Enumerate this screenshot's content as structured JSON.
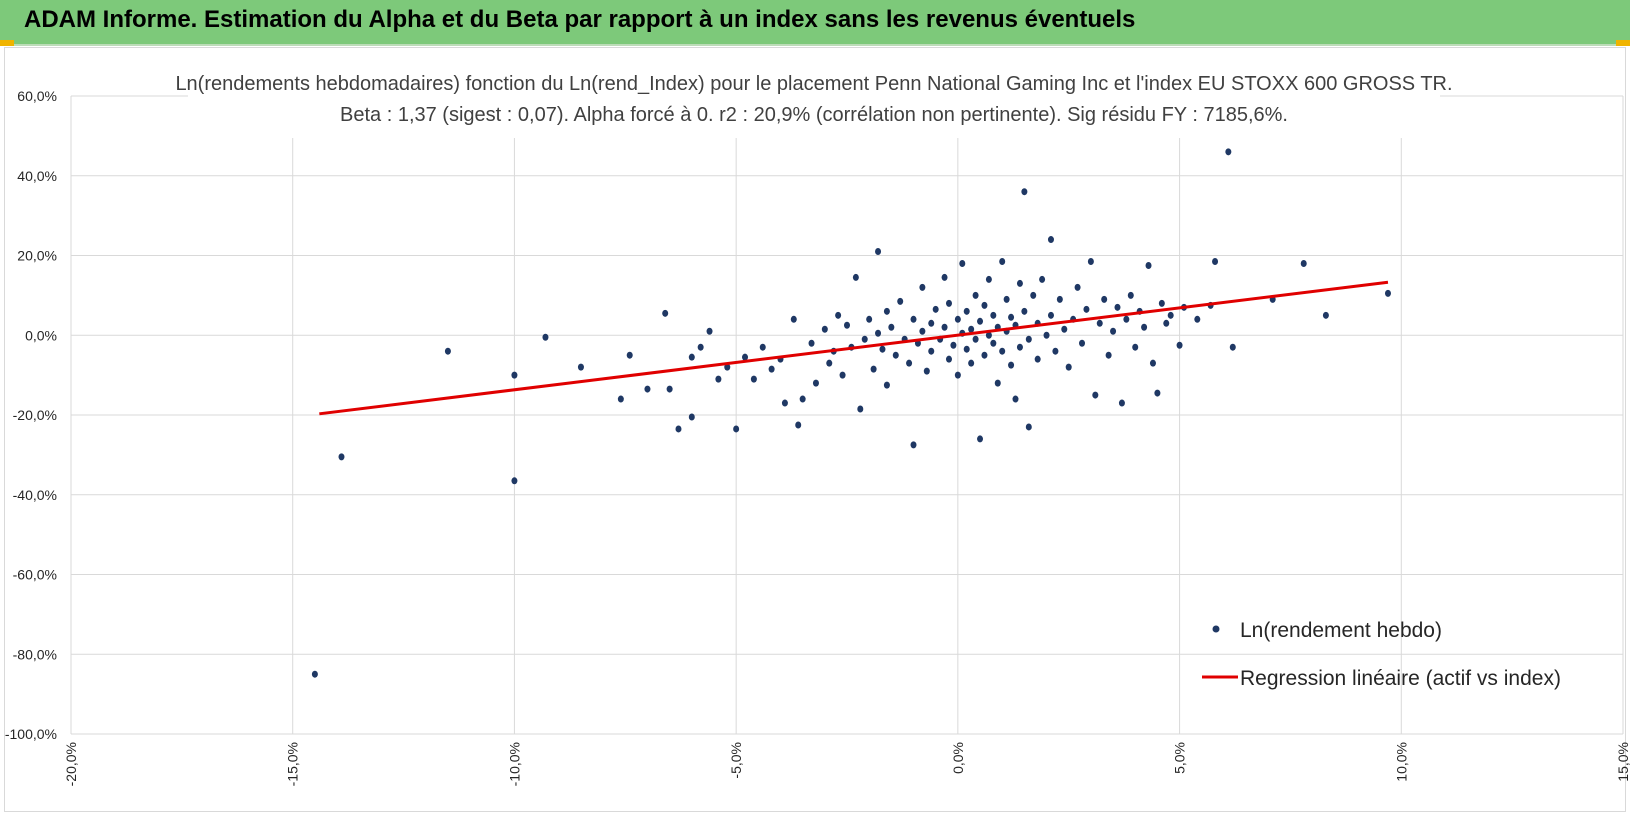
{
  "banner": {
    "title": "ADAM Informe. Estimation du Alpha et du Beta par rapport à un index sans les revenus éventuels",
    "background_color": "#7dc97a",
    "corner_color": "#f0b400"
  },
  "chart_data": {
    "type": "scatter",
    "title": "Ln(rendements hebdomadaires) fonction du Ln(rend_Index) pour le placement Penn National Gaming Inc et l'index EU STOXX 600 GROSS TR.",
    "subtitle": "Beta : 1,37 (sigest : 0,07). Alpha forcé à 0. r2 : 20,9% (corrélation non pertinente). Sig résidu FY : 7185,6%.",
    "xlabel": "",
    "ylabel": "",
    "xlim": [
      -0.2,
      0.15
    ],
    "ylim": [
      -1.0,
      0.6
    ],
    "x_ticks": [
      -0.2,
      -0.15,
      -0.1,
      -0.05,
      0.0,
      0.05,
      0.1,
      0.15
    ],
    "x_tick_labels": [
      "-20,0%",
      "-15,0%",
      "-10,0%",
      "-5,0%",
      "0,0%",
      "5,0%",
      "10,0%",
      "15,0%"
    ],
    "y_ticks": [
      0.6,
      0.4,
      0.2,
      0.0,
      -0.2,
      -0.4,
      -0.6,
      -0.8,
      -1.0
    ],
    "y_tick_labels": [
      "60,0%",
      "40,0%",
      "20,0%",
      "0,0%",
      "-20,0%",
      "-40,0%",
      "-60,0%",
      "-80,0%",
      "-100,0%"
    ],
    "grid": true,
    "legend_position": "bottom-right",
    "series": [
      {
        "name": "Ln(rendement hebdo)",
        "kind": "scatter",
        "color": "#1f3864",
        "points": [
          [
            -0.145,
            -0.85
          ],
          [
            -0.139,
            -0.305
          ],
          [
            -0.115,
            -0.04
          ],
          [
            -0.1,
            -0.365
          ],
          [
            -0.1,
            -0.1
          ],
          [
            -0.093,
            -0.005
          ],
          [
            -0.085,
            -0.08
          ],
          [
            -0.076,
            -0.16
          ],
          [
            -0.074,
            -0.05
          ],
          [
            -0.07,
            -0.135
          ],
          [
            -0.066,
            0.055
          ],
          [
            -0.065,
            -0.135
          ],
          [
            -0.063,
            -0.235
          ],
          [
            -0.06,
            -0.205
          ],
          [
            -0.06,
            -0.055
          ],
          [
            -0.058,
            -0.03
          ],
          [
            -0.056,
            0.01
          ],
          [
            -0.054,
            -0.11
          ],
          [
            -0.052,
            -0.08
          ],
          [
            -0.05,
            -0.235
          ],
          [
            -0.048,
            -0.055
          ],
          [
            -0.046,
            -0.11
          ],
          [
            -0.044,
            -0.03
          ],
          [
            -0.042,
            -0.085
          ],
          [
            -0.04,
            -0.06
          ],
          [
            -0.039,
            -0.17
          ],
          [
            -0.037,
            0.04
          ],
          [
            -0.036,
            -0.225
          ],
          [
            -0.035,
            -0.16
          ],
          [
            -0.033,
            -0.02
          ],
          [
            -0.032,
            -0.12
          ],
          [
            -0.03,
            0.015
          ],
          [
            -0.029,
            -0.07
          ],
          [
            -0.028,
            -0.04
          ],
          [
            -0.027,
            0.05
          ],
          [
            -0.026,
            -0.1
          ],
          [
            -0.025,
            0.025
          ],
          [
            -0.024,
            -0.03
          ],
          [
            -0.023,
            0.145
          ],
          [
            -0.022,
            -0.185
          ],
          [
            -0.021,
            -0.01
          ],
          [
            -0.02,
            0.04
          ],
          [
            -0.019,
            -0.085
          ],
          [
            -0.018,
            0.21
          ],
          [
            -0.018,
            0.005
          ],
          [
            -0.017,
            -0.035
          ],
          [
            -0.016,
            0.06
          ],
          [
            -0.016,
            -0.125
          ],
          [
            -0.015,
            0.02
          ],
          [
            -0.014,
            -0.05
          ],
          [
            -0.013,
            0.085
          ],
          [
            -0.012,
            -0.01
          ],
          [
            -0.011,
            -0.07
          ],
          [
            -0.01,
            0.04
          ],
          [
            -0.01,
            -0.275
          ],
          [
            -0.009,
            -0.02
          ],
          [
            -0.008,
            0.12
          ],
          [
            -0.008,
            0.01
          ],
          [
            -0.007,
            -0.09
          ],
          [
            -0.006,
            0.03
          ],
          [
            -0.006,
            -0.04
          ],
          [
            -0.005,
            0.065
          ],
          [
            -0.004,
            -0.01
          ],
          [
            -0.003,
            0.145
          ],
          [
            -0.003,
            0.02
          ],
          [
            -0.002,
            -0.06
          ],
          [
            -0.002,
            0.08
          ],
          [
            -0.001,
            -0.025
          ],
          [
            0.0,
            0.04
          ],
          [
            0.0,
            -0.1
          ],
          [
            0.001,
            0.005
          ],
          [
            0.001,
            0.18
          ],
          [
            0.002,
            -0.035
          ],
          [
            0.002,
            0.06
          ],
          [
            0.003,
            0.015
          ],
          [
            0.003,
            -0.07
          ],
          [
            0.004,
            0.1
          ],
          [
            0.004,
            -0.01
          ],
          [
            0.005,
            0.035
          ],
          [
            0.005,
            -0.26
          ],
          [
            0.006,
            -0.05
          ],
          [
            0.006,
            0.075
          ],
          [
            0.007,
            0.0
          ],
          [
            0.007,
            0.14
          ],
          [
            0.008,
            -0.02
          ],
          [
            0.008,
            0.05
          ],
          [
            0.009,
            -0.12
          ],
          [
            0.009,
            0.02
          ],
          [
            0.01,
            0.185
          ],
          [
            0.01,
            -0.04
          ],
          [
            0.011,
            0.09
          ],
          [
            0.011,
            0.01
          ],
          [
            0.012,
            -0.075
          ],
          [
            0.012,
            0.045
          ],
          [
            0.013,
            -0.16
          ],
          [
            0.013,
            0.025
          ],
          [
            0.014,
            0.13
          ],
          [
            0.014,
            -0.03
          ],
          [
            0.015,
            0.36
          ],
          [
            0.015,
            0.06
          ],
          [
            0.016,
            -0.23
          ],
          [
            0.016,
            -0.01
          ],
          [
            0.017,
            0.1
          ],
          [
            0.018,
            0.03
          ],
          [
            0.018,
            -0.06
          ],
          [
            0.019,
            0.14
          ],
          [
            0.02,
            0.0
          ],
          [
            0.021,
            0.24
          ],
          [
            0.021,
            0.05
          ],
          [
            0.022,
            -0.04
          ],
          [
            0.023,
            0.09
          ],
          [
            0.024,
            0.015
          ],
          [
            0.025,
            -0.08
          ],
          [
            0.026,
            0.04
          ],
          [
            0.027,
            0.12
          ],
          [
            0.028,
            -0.02
          ],
          [
            0.029,
            0.065
          ],
          [
            0.03,
            0.185
          ],
          [
            0.031,
            -0.15
          ],
          [
            0.032,
            0.03
          ],
          [
            0.033,
            0.09
          ],
          [
            0.034,
            -0.05
          ],
          [
            0.035,
            0.01
          ],
          [
            0.036,
            0.07
          ],
          [
            0.037,
            -0.17
          ],
          [
            0.038,
            0.04
          ],
          [
            0.039,
            0.1
          ],
          [
            0.04,
            -0.03
          ],
          [
            0.041,
            0.06
          ],
          [
            0.042,
            0.02
          ],
          [
            0.043,
            0.175
          ],
          [
            0.044,
            -0.07
          ],
          [
            0.045,
            -0.145
          ],
          [
            0.046,
            0.08
          ],
          [
            0.047,
            0.03
          ],
          [
            0.048,
            0.05
          ],
          [
            0.05,
            -0.025
          ],
          [
            0.051,
            0.07
          ],
          [
            0.054,
            0.04
          ],
          [
            0.057,
            0.075
          ],
          [
            0.058,
            0.185
          ],
          [
            0.061,
            0.46
          ],
          [
            0.062,
            -0.03
          ],
          [
            0.071,
            0.09
          ],
          [
            0.078,
            0.18
          ],
          [
            0.083,
            0.05
          ],
          [
            0.097,
            0.105
          ]
        ]
      },
      {
        "name": "Regression linéaire (actif vs index)",
        "kind": "line",
        "color": "#e00000",
        "points": [
          [
            -0.144,
            -0.197
          ],
          [
            0.097,
            0.133
          ]
        ]
      }
    ]
  }
}
